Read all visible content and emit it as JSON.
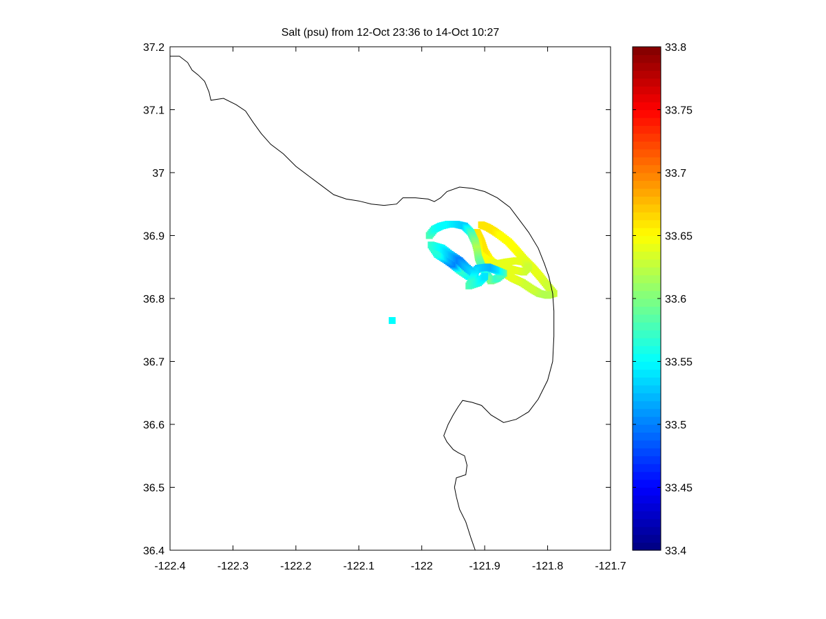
{
  "chart_data": {
    "type": "scatter",
    "title": "Salt (psu) from 12-Oct 23:36 to 14-Oct 10:27",
    "xlabel": "",
    "ylabel": "",
    "xlim": [
      -122.4,
      -121.7
    ],
    "ylim": [
      36.4,
      37.2
    ],
    "x_ticks": [
      -122.4,
      -122.3,
      -122.2,
      -122.1,
      -122,
      -121.9,
      -121.8,
      -121.7
    ],
    "x_tick_labels": [
      "-122.4",
      "-122.3",
      "-122.2",
      "-122.1",
      "-122",
      "-121.9",
      "-121.8",
      "-121.7"
    ],
    "y_ticks": [
      36.4,
      36.5,
      36.6,
      36.7,
      36.8,
      36.9,
      37,
      37.1,
      37.2
    ],
    "y_tick_labels": [
      "36.4",
      "36.5",
      "36.6",
      "36.7",
      "36.8",
      "36.9",
      "37",
      "37.1",
      "37.2"
    ],
    "grid": false,
    "colormap": "jet",
    "colorbar": {
      "min": 33.4,
      "max": 33.8,
      "ticks": [
        33.4,
        33.45,
        33.5,
        33.55,
        33.6,
        33.65,
        33.7,
        33.75,
        33.8
      ],
      "tick_labels": [
        "33.4",
        "33.45",
        "33.5",
        "33.55",
        "33.6",
        "33.65",
        "33.7",
        "33.75",
        "33.8"
      ]
    },
    "coastline": [
      [
        -122.4,
        37.185
      ],
      [
        -122.385,
        37.185
      ],
      [
        -122.372,
        37.175
      ],
      [
        -122.365,
        37.163
      ],
      [
        -122.355,
        37.155
      ],
      [
        -122.345,
        37.145
      ],
      [
        -122.338,
        37.128
      ],
      [
        -122.335,
        37.115
      ],
      [
        -122.315,
        37.118
      ],
      [
        -122.295,
        37.108
      ],
      [
        -122.28,
        37.098
      ],
      [
        -122.268,
        37.08
      ],
      [
        -122.255,
        37.062
      ],
      [
        -122.24,
        37.045
      ],
      [
        -122.22,
        37.03
      ],
      [
        -122.2,
        37.01
      ],
      [
        -122.18,
        36.995
      ],
      [
        -122.16,
        36.98
      ],
      [
        -122.14,
        36.965
      ],
      [
        -122.12,
        36.958
      ],
      [
        -122.1,
        36.955
      ],
      [
        -122.08,
        36.95
      ],
      [
        -122.06,
        36.948
      ],
      [
        -122.04,
        36.95
      ],
      [
        -122.03,
        36.96
      ],
      [
        -122.01,
        36.96
      ],
      [
        -121.99,
        36.958
      ],
      [
        -121.98,
        36.954
      ],
      [
        -121.97,
        36.96
      ],
      [
        -121.96,
        36.97
      ],
      [
        -121.94,
        36.977
      ],
      [
        -121.92,
        36.975
      ],
      [
        -121.9,
        36.97
      ],
      [
        -121.88,
        36.96
      ],
      [
        -121.86,
        36.945
      ],
      [
        -121.845,
        36.925
      ],
      [
        -121.83,
        36.905
      ],
      [
        -121.815,
        36.88
      ],
      [
        -121.805,
        36.855
      ],
      [
        -121.798,
        36.835
      ],
      [
        -121.792,
        36.808
      ],
      [
        -121.79,
        36.78
      ],
      [
        -121.79,
        36.74
      ],
      [
        -121.792,
        36.7
      ],
      [
        -121.8,
        36.67
      ],
      [
        -121.815,
        36.64
      ],
      [
        -121.83,
        36.62
      ],
      [
        -121.85,
        36.608
      ],
      [
        -121.87,
        36.603
      ],
      [
        -121.89,
        36.615
      ],
      [
        -121.905,
        36.63
      ],
      [
        -121.92,
        36.635
      ],
      [
        -121.935,
        36.638
      ],
      [
        -121.942,
        36.628
      ],
      [
        -121.95,
        36.615
      ],
      [
        -121.958,
        36.6
      ],
      [
        -121.965,
        36.582
      ],
      [
        -121.96,
        36.572
      ],
      [
        -121.95,
        36.56
      ],
      [
        -121.942,
        36.555
      ],
      [
        -121.932,
        36.55
      ],
      [
        -121.928,
        36.535
      ],
      [
        -121.93,
        36.52
      ],
      [
        -121.945,
        36.515
      ],
      [
        -121.948,
        36.5
      ],
      [
        -121.945,
        36.485
      ],
      [
        -121.94,
        36.465
      ],
      [
        -121.93,
        36.445
      ],
      [
        -121.922,
        36.42
      ],
      [
        -121.915,
        36.4
      ]
    ],
    "series": [
      {
        "type": "loop",
        "points": [
          [
            -121.905,
            36.917,
            33.66
          ],
          [
            -121.895,
            36.913,
            33.66
          ],
          [
            -121.885,
            36.907,
            33.66
          ],
          [
            -121.875,
            36.9,
            33.65
          ],
          [
            -121.862,
            36.89,
            33.65
          ],
          [
            -121.85,
            36.877,
            33.65
          ],
          [
            -121.838,
            36.863,
            33.64
          ],
          [
            -121.825,
            36.85,
            33.64
          ],
          [
            -121.812,
            36.835,
            33.64
          ],
          [
            -121.8,
            36.82,
            33.63
          ],
          [
            -121.79,
            36.808,
            33.63
          ],
          [
            -121.8,
            36.805,
            33.62
          ],
          [
            -121.813,
            36.808,
            33.62
          ],
          [
            -121.825,
            36.815,
            33.63
          ],
          [
            -121.84,
            36.825,
            33.63
          ],
          [
            -121.855,
            36.832,
            33.64
          ],
          [
            -121.868,
            36.84,
            33.64
          ],
          [
            -121.88,
            36.85,
            33.65
          ],
          [
            -121.892,
            36.862,
            33.65
          ],
          [
            -121.9,
            36.875,
            33.66
          ],
          [
            -121.905,
            36.89,
            33.66
          ],
          [
            -121.912,
            36.905,
            33.66
          ],
          [
            -121.908,
            36.87,
            33.65
          ],
          [
            -121.895,
            36.86,
            33.65
          ],
          [
            -121.88,
            36.855,
            33.64
          ],
          [
            -121.865,
            36.858,
            33.64
          ],
          [
            -121.85,
            36.86,
            33.64
          ],
          [
            -121.838,
            36.858,
            33.64
          ],
          [
            -121.83,
            36.85,
            33.63
          ],
          [
            -121.838,
            36.842,
            33.63
          ],
          [
            -121.852,
            36.845,
            33.64
          ],
          [
            -121.87,
            36.85,
            33.64
          ]
        ]
      },
      {
        "type": "loop",
        "points": [
          [
            -121.988,
            36.9,
            33.58
          ],
          [
            -121.98,
            36.91,
            33.56
          ],
          [
            -121.97,
            36.915,
            33.55
          ],
          [
            -121.958,
            36.918,
            33.55
          ],
          [
            -121.945,
            36.918,
            33.54
          ],
          [
            -121.932,
            36.915,
            33.53
          ],
          [
            -121.922,
            36.905,
            33.57
          ],
          [
            -121.915,
            36.89,
            33.6
          ],
          [
            -121.912,
            36.878,
            33.62
          ],
          [
            -121.91,
            36.865,
            33.6
          ],
          [
            -121.905,
            36.852,
            33.58
          ],
          [
            -121.898,
            36.84,
            33.55
          ],
          [
            -121.89,
            36.828,
            33.6
          ],
          [
            -121.88,
            36.832,
            33.57
          ],
          [
            -121.87,
            36.84,
            33.58
          ],
          [
            -121.882,
            36.845,
            33.54
          ],
          [
            -121.895,
            36.85,
            33.52
          ],
          [
            -121.91,
            36.848,
            33.53
          ],
          [
            -121.925,
            36.835,
            33.55
          ],
          [
            -121.94,
            36.845,
            33.57
          ],
          [
            -121.952,
            36.855,
            33.5
          ],
          [
            -121.962,
            36.862,
            33.52
          ],
          [
            -121.975,
            36.87,
            33.56
          ],
          [
            -121.985,
            36.885,
            33.57
          ],
          [
            -121.968,
            36.88,
            33.55
          ],
          [
            -121.955,
            36.87,
            33.53
          ],
          [
            -121.94,
            36.86,
            33.5
          ],
          [
            -121.93,
            36.85,
            33.52
          ],
          [
            -121.915,
            36.838,
            33.54
          ],
          [
            -121.925,
            36.82,
            33.58
          ],
          [
            -121.91,
            36.825,
            33.56
          ],
          [
            -121.9,
            36.835,
            33.54
          ]
        ]
      },
      {
        "type": "point",
        "points": [
          [
            -122.047,
            36.765,
            33.55
          ]
        ]
      }
    ]
  }
}
